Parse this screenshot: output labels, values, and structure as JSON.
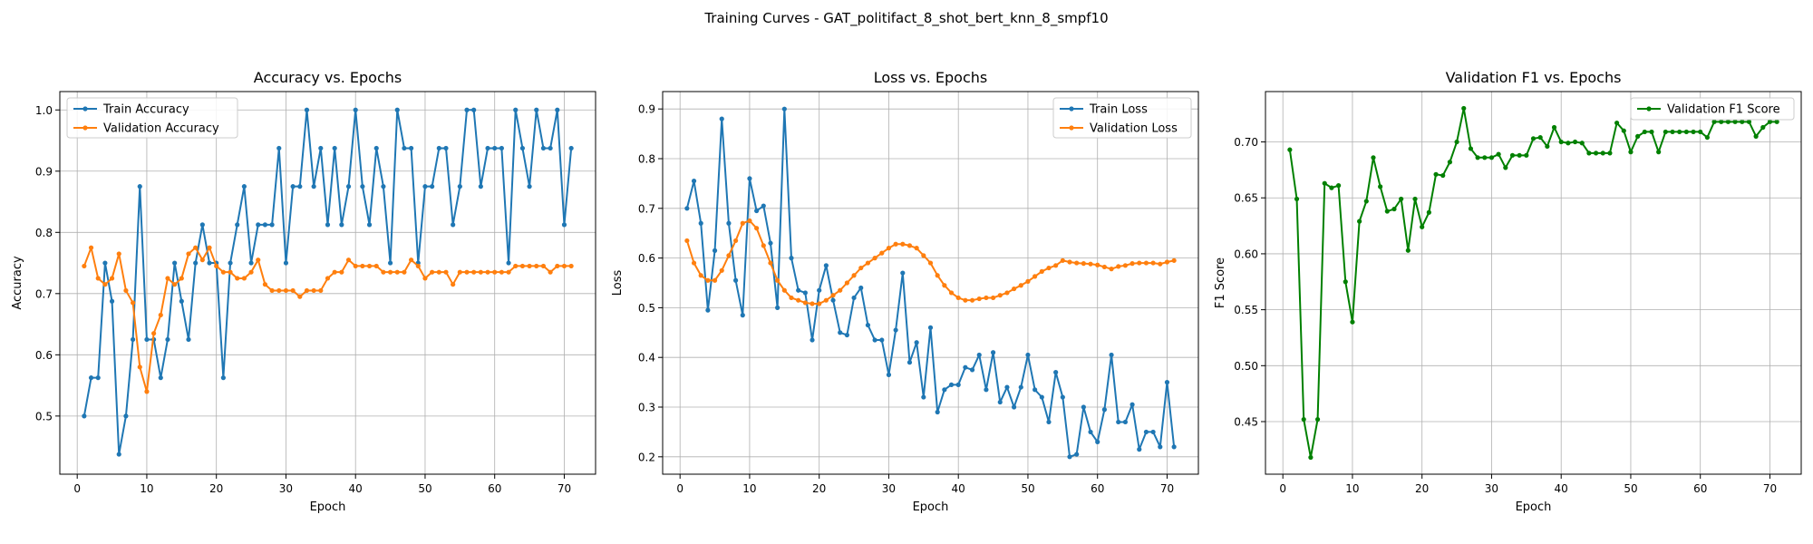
{
  "figure": {
    "suptitle": "Training Curves - GAT_politifact_8_shot_bert_knn_8_smpf10"
  },
  "colors": {
    "blue": "#1f77b4",
    "orange": "#ff7f0e",
    "green": "#008000",
    "grid": "#b0b0b0",
    "axes": "#000000"
  },
  "chart_data": [
    {
      "type": "line",
      "title": "Accuracy vs. Epochs",
      "xlabel": "Epoch",
      "ylabel": "Accuracy",
      "xlim": [
        -2.5,
        74.5
      ],
      "ylim": [
        0.405,
        1.03
      ],
      "xticks": [
        0,
        10,
        20,
        30,
        40,
        50,
        60,
        70
      ],
      "yticks": [
        0.5,
        0.6,
        0.7,
        0.8,
        0.9,
        1.0
      ],
      "ytick_labels": [
        "0.5",
        "0.6",
        "0.7",
        "0.8",
        "0.9",
        "1.0"
      ],
      "grid": true,
      "legend": "upper-left",
      "series": [
        {
          "name": "Train Accuracy",
          "color": "#1f77b4",
          "x_start": 1,
          "values": [
            0.5,
            0.5625,
            0.5625,
            0.75,
            0.6875,
            0.4375,
            0.5,
            0.625,
            0.875,
            0.625,
            0.625,
            0.5625,
            0.625,
            0.75,
            0.6875,
            0.625,
            0.75,
            0.8125,
            0.75,
            0.75,
            0.5625,
            0.75,
            0.8125,
            0.875,
            0.75,
            0.8125,
            0.8125,
            0.8125,
            0.9375,
            0.75,
            0.875,
            0.875,
            1.0,
            0.875,
            0.9375,
            0.8125,
            0.9375,
            0.8125,
            0.875,
            1.0,
            0.875,
            0.8125,
            0.9375,
            0.875,
            0.75,
            1.0,
            0.9375,
            0.9375,
            0.75,
            0.875,
            0.875,
            0.9375,
            0.9375,
            0.8125,
            0.875,
            1.0,
            1.0,
            0.875,
            0.9375,
            0.9375,
            0.9375,
            0.75,
            1.0,
            0.9375,
            0.875,
            1.0,
            0.9375,
            0.9375,
            1.0,
            0.8125,
            0.9375
          ]
        },
        {
          "name": "Validation Accuracy",
          "color": "#ff7f0e",
          "x_start": 1,
          "values": [
            0.745,
            0.775,
            0.725,
            0.715,
            0.725,
            0.765,
            0.705,
            0.685,
            0.58,
            0.54,
            0.635,
            0.665,
            0.725,
            0.715,
            0.725,
            0.765,
            0.775,
            0.755,
            0.775,
            0.745,
            0.735,
            0.735,
            0.725,
            0.725,
            0.735,
            0.755,
            0.715,
            0.705,
            0.705,
            0.705,
            0.705,
            0.695,
            0.705,
            0.705,
            0.705,
            0.725,
            0.735,
            0.735,
            0.755,
            0.745,
            0.745,
            0.745,
            0.745,
            0.735,
            0.735,
            0.735,
            0.735,
            0.755,
            0.745,
            0.725,
            0.735,
            0.735,
            0.735,
            0.715,
            0.735,
            0.735,
            0.735,
            0.735,
            0.735,
            0.735,
            0.735,
            0.735,
            0.745,
            0.745,
            0.745,
            0.745,
            0.745,
            0.735,
            0.745,
            0.745,
            0.745
          ]
        }
      ]
    },
    {
      "type": "line",
      "title": "Loss vs. Epochs",
      "xlabel": "Epoch",
      "ylabel": "Loss",
      "xlim": [
        -2.5,
        74.5
      ],
      "ylim": [
        0.165,
        0.935
      ],
      "xticks": [
        0,
        10,
        20,
        30,
        40,
        50,
        60,
        70
      ],
      "yticks": [
        0.2,
        0.3,
        0.4,
        0.5,
        0.6,
        0.7,
        0.8,
        0.9
      ],
      "ytick_labels": [
        "0.2",
        "0.3",
        "0.4",
        "0.5",
        "0.6",
        "0.7",
        "0.8",
        "0.9"
      ],
      "grid": true,
      "legend": "upper-right",
      "series": [
        {
          "name": "Train Loss",
          "color": "#1f77b4",
          "x_start": 1,
          "values": [
            0.7,
            0.755,
            0.67,
            0.495,
            0.615,
            0.88,
            0.67,
            0.555,
            0.485,
            0.76,
            0.695,
            0.705,
            0.63,
            0.5,
            0.9,
            0.6,
            0.535,
            0.53,
            0.435,
            0.535,
            0.585,
            0.515,
            0.45,
            0.445,
            0.52,
            0.54,
            0.465,
            0.435,
            0.435,
            0.365,
            0.455,
            0.57,
            0.39,
            0.43,
            0.32,
            0.46,
            0.29,
            0.335,
            0.345,
            0.345,
            0.38,
            0.375,
            0.405,
            0.335,
            0.41,
            0.31,
            0.34,
            0.3,
            0.34,
            0.405,
            0.335,
            0.32,
            0.27,
            0.37,
            0.32,
            0.2,
            0.205,
            0.3,
            0.25,
            0.23,
            0.295,
            0.405,
            0.27,
            0.27,
            0.305,
            0.215,
            0.25,
            0.25,
            0.22,
            0.35,
            0.22
          ]
        },
        {
          "name": "Validation Loss",
          "color": "#ff7f0e",
          "x_start": 1,
          "values": [
            0.635,
            0.59,
            0.565,
            0.555,
            0.555,
            0.575,
            0.605,
            0.635,
            0.67,
            0.675,
            0.66,
            0.625,
            0.59,
            0.555,
            0.535,
            0.52,
            0.515,
            0.51,
            0.508,
            0.508,
            0.515,
            0.525,
            0.535,
            0.55,
            0.565,
            0.58,
            0.59,
            0.6,
            0.61,
            0.62,
            0.628,
            0.628,
            0.625,
            0.62,
            0.605,
            0.59,
            0.565,
            0.545,
            0.53,
            0.52,
            0.515,
            0.515,
            0.518,
            0.52,
            0.52,
            0.525,
            0.53,
            0.538,
            0.545,
            0.553,
            0.563,
            0.573,
            0.58,
            0.585,
            0.595,
            0.592,
            0.59,
            0.589,
            0.588,
            0.586,
            0.582,
            0.578,
            0.583,
            0.585,
            0.589,
            0.59,
            0.59,
            0.59,
            0.588,
            0.592,
            0.595
          ]
        }
      ]
    },
    {
      "type": "line",
      "title": "Validation F1 vs. Epochs",
      "xlabel": "Epoch",
      "ylabel": "F1 Score",
      "xlim": [
        -2.5,
        74.5
      ],
      "ylim": [
        0.403,
        0.745
      ],
      "xticks": [
        0,
        10,
        20,
        30,
        40,
        50,
        60,
        70
      ],
      "yticks": [
        0.45,
        0.5,
        0.55,
        0.6,
        0.65,
        0.7
      ],
      "ytick_labels": [
        "0.45",
        "0.50",
        "0.55",
        "0.60",
        "0.65",
        "0.70"
      ],
      "grid": true,
      "legend": "upper-right",
      "series": [
        {
          "name": "Validation F1 Score",
          "color": "#008000",
          "x_start": 1,
          "values": [
            0.693,
            0.649,
            0.452,
            0.418,
            0.452,
            0.663,
            0.659,
            0.661,
            0.575,
            0.539,
            0.629,
            0.647,
            0.686,
            0.66,
            0.638,
            0.64,
            0.649,
            0.603,
            0.649,
            0.624,
            0.637,
            0.671,
            0.67,
            0.682,
            0.7,
            0.73,
            0.694,
            0.686,
            0.686,
            0.686,
            0.689,
            0.677,
            0.688,
            0.688,
            0.688,
            0.703,
            0.704,
            0.696,
            0.713,
            0.7,
            0.699,
            0.7,
            0.699,
            0.69,
            0.69,
            0.69,
            0.69,
            0.717,
            0.71,
            0.691,
            0.705,
            0.709,
            0.709,
            0.691,
            0.709,
            0.709,
            0.709,
            0.709,
            0.709,
            0.709,
            0.704,
            0.718,
            0.718,
            0.718,
            0.718,
            0.718,
            0.718,
            0.705,
            0.713,
            0.718,
            0.718
          ]
        }
      ]
    }
  ]
}
